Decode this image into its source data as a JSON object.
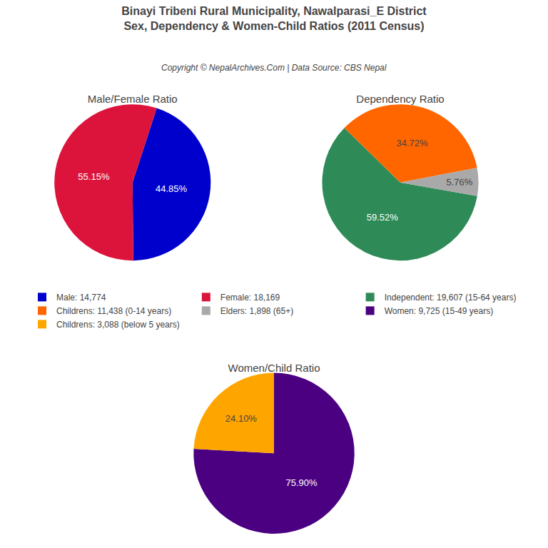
{
  "title": "Binayi Tribeni Rural Municipality, Nawalparasi_E District",
  "subtitle": "Sex, Dependency & Women-Child Ratios (2011 Census)",
  "annotations": [
    "Copyright © NepalArchives.Com | Data Source: CBS Nepal"
  ],
  "chart_data": [
    {
      "type": "pie",
      "title": "Male/Female Ratio",
      "categories": [
        "Male: 14,774",
        "Female: 18,169"
      ],
      "values": [
        44.85,
        55.15
      ],
      "value_labels": [
        "44.85%",
        "55.15%"
      ],
      "colors": [
        "#0000CD",
        "#DC143C"
      ],
      "data_labels": true,
      "legend": "center"
    },
    {
      "type": "pie",
      "title": "Dependency Ratio",
      "categories": [
        "Independent: 19,607 (15-64 years)",
        "Childrens: 11,438 (0-14 years)",
        "Elders: 1,898 (65+)"
      ],
      "values": [
        59.52,
        34.72,
        5.76
      ],
      "value_labels": [
        "59.52%",
        "34.72%",
        "5.76%"
      ],
      "colors": [
        "#2E8B57",
        "#FF6600",
        "#A9A9A9"
      ],
      "data_labels": true,
      "legend": "center"
    },
    {
      "type": "pie",
      "title": "Women/Child Ratio",
      "categories": [
        "Women: 9,725 (15-49 years)",
        "Childrens: 3,088 (below 5 years)"
      ],
      "values": [
        75.9,
        24.1
      ],
      "value_labels": [
        "75.90%",
        "24.10%"
      ],
      "colors": [
        "#4B0082",
        "#FFA500"
      ],
      "data_labels": true,
      "legend": "center"
    }
  ]
}
